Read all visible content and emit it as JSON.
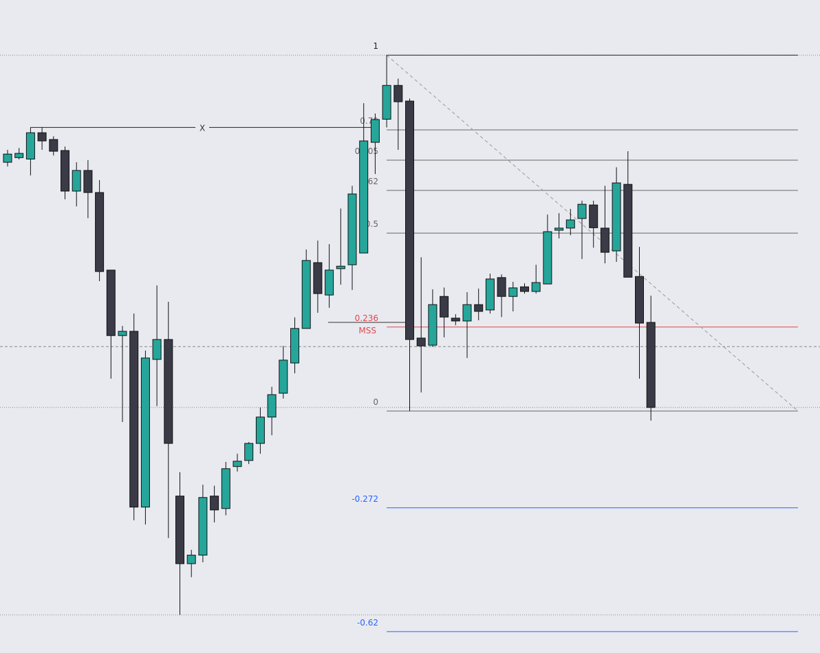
{
  "chart_data": {
    "type": "candlestick",
    "up_color": "#26a69a",
    "down_color": "#3a3b47",
    "ylim": [
      -0.68,
      1.155
    ],
    "open": [
      0.699,
      0.712,
      0.708,
      0.782,
      0.763,
      0.732,
      0.618,
      0.676,
      0.614,
      0.396,
      0.212,
      0.224,
      -0.27,
      0.145,
      0.201,
      -0.239,
      -0.429,
      -0.405,
      -0.239,
      -0.274,
      -0.156,
      -0.139,
      -0.091,
      -0.017,
      0.05,
      0.135,
      0.232,
      0.417,
      0.326,
      0.4,
      0.411,
      0.444,
      0.755,
      0.82,
      0.915,
      0.871,
      0.205,
      0.185,
      0.322,
      0.261,
      0.253,
      0.299,
      0.284,
      0.375,
      0.322,
      0.349,
      0.336,
      0.357,
      0.508,
      0.514,
      0.541,
      0.579,
      0.514,
      0.45,
      0.637,
      0.378,
      0.249
    ],
    "high": [
      0.734,
      0.739,
      0.797,
      0.797,
      0.772,
      0.743,
      0.699,
      0.705,
      0.649,
      0.396,
      0.239,
      0.274,
      0.17,
      0.353,
      0.307,
      -0.172,
      -0.39,
      -0.207,
      -0.21,
      -0.143,
      -0.12,
      -0.087,
      0.01,
      0.068,
      0.183,
      0.263,
      0.454,
      0.479,
      0.469,
      0.569,
      0.633,
      0.865,
      0.836,
      1.0,
      0.934,
      0.878,
      0.432,
      0.342,
      0.347,
      0.272,
      0.334,
      0.344,
      0.386,
      0.384,
      0.363,
      0.359,
      0.411,
      0.552,
      0.556,
      0.568,
      0.591,
      0.591,
      0.633,
      0.685,
      0.73,
      0.461,
      0.324
    ],
    "low": [
      0.687,
      0.707,
      0.662,
      0.734,
      0.718,
      0.595,
      0.575,
      0.542,
      0.365,
      0.091,
      -0.031,
      -0.307,
      -0.319,
      0.014,
      -0.357,
      -0.573,
      -0.467,
      -0.425,
      -0.313,
      -0.293,
      -0.17,
      -0.149,
      -0.12,
      -0.068,
      0.035,
      0.106,
      0.232,
      0.276,
      0.29,
      0.355,
      0.34,
      0.444,
      0.666,
      0.797,
      0.734,
      0.0,
      0.052,
      0.18,
      0.207,
      0.241,
      0.149,
      0.255,
      0.274,
      0.264,
      0.28,
      0.33,
      0.33,
      0.357,
      0.485,
      0.494,
      0.427,
      0.459,
      0.415,
      0.419,
      0.376,
      0.091,
      -0.027
    ],
    "close": [
      0.722,
      0.724,
      0.782,
      0.759,
      0.73,
      0.618,
      0.676,
      0.614,
      0.392,
      0.212,
      0.224,
      -0.27,
      0.149,
      0.201,
      -0.091,
      -0.429,
      -0.405,
      -0.243,
      -0.278,
      -0.162,
      -0.141,
      -0.091,
      -0.017,
      0.046,
      0.143,
      0.232,
      0.423,
      0.33,
      0.396,
      0.407,
      0.61,
      0.759,
      0.819,
      0.915,
      0.869,
      0.201,
      0.183,
      0.299,
      0.264,
      0.253,
      0.299,
      0.28,
      0.371,
      0.322,
      0.346,
      0.336,
      0.361,
      0.504,
      0.514,
      0.537,
      0.581,
      0.515,
      0.446,
      0.641,
      0.376,
      0.247,
      0.01
    ],
    "reference_lines": [
      {
        "value": 1.0,
        "style": "dotted"
      },
      {
        "value": 0.01,
        "style": "dotted"
      },
      {
        "value": -0.573,
        "style": "dotted"
      },
      {
        "value": 0.181,
        "style": "dashed"
      }
    ],
    "fib": {
      "x": [
        33,
        68.8
      ],
      "levels": [
        {
          "level": 1,
          "color": "#222222"
        },
        {
          "level": 0.79,
          "color": "#666666"
        },
        {
          "level": 0.705,
          "color": "#666666"
        },
        {
          "level": 0.62,
          "color": "#666666"
        },
        {
          "level": 0.5,
          "color": "#666666"
        },
        {
          "level": 0.236,
          "color": "#e0474c"
        },
        {
          "level": 0,
          "color": "#666666"
        },
        {
          "level": -0.272,
          "color": "#2962ff"
        },
        {
          "level": -0.62,
          "color": "#2962ff"
        }
      ]
    },
    "trend_line": {
      "x": [
        33,
        68.8
      ],
      "y": [
        1,
        0
      ]
    },
    "x_line": {
      "label": "X",
      "value": 0.797,
      "x": [
        2,
        31.9
      ]
    },
    "mss_line": {
      "label": "MSS",
      "value": 0.249,
      "x": [
        27.9,
        34.7
      ],
      "color": "#e0474c"
    }
  }
}
